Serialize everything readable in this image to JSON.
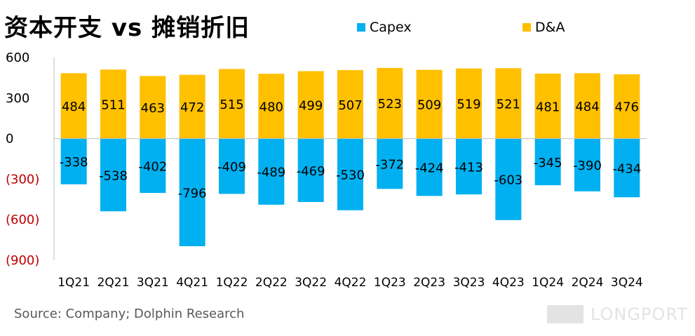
{
  "title": "资本开支 vs 摊销折旧",
  "source": "Source: Company; Dolphin Research",
  "watermark": "LONGPORT",
  "colors": {
    "capex": "#00B0F0",
    "da": "#FFC000",
    "negative_tick": "#C00000"
  },
  "chart_data": {
    "type": "bar",
    "title": "资本开支 vs 摊销折旧",
    "categories": [
      "1Q21",
      "2Q21",
      "3Q21",
      "4Q21",
      "1Q22",
      "2Q22",
      "3Q22",
      "4Q22",
      "1Q23",
      "2Q23",
      "3Q23",
      "4Q23",
      "1Q24",
      "2Q24",
      "3Q24"
    ],
    "series": [
      {
        "name": "Capex",
        "color": "#00B0F0",
        "values": [
          -338,
          -538,
          -402,
          -796,
          -409,
          -489,
          -469,
          -530,
          -372,
          -424,
          -413,
          -603,
          -345,
          -390,
          -434
        ]
      },
      {
        "name": "D&A",
        "color": "#FFC000",
        "values": [
          484,
          511,
          463,
          472,
          515,
          480,
          499,
          507,
          523,
          509,
          519,
          521,
          481,
          484,
          476
        ]
      }
    ],
    "ylim": [
      -900,
      600
    ],
    "yticks": [
      600,
      300,
      0,
      -300,
      -600,
      -900
    ],
    "ytick_labels": [
      "600",
      "300",
      "0",
      "(300)",
      "(600)",
      "(900)"
    ],
    "legend_position": "top",
    "grid": false
  }
}
